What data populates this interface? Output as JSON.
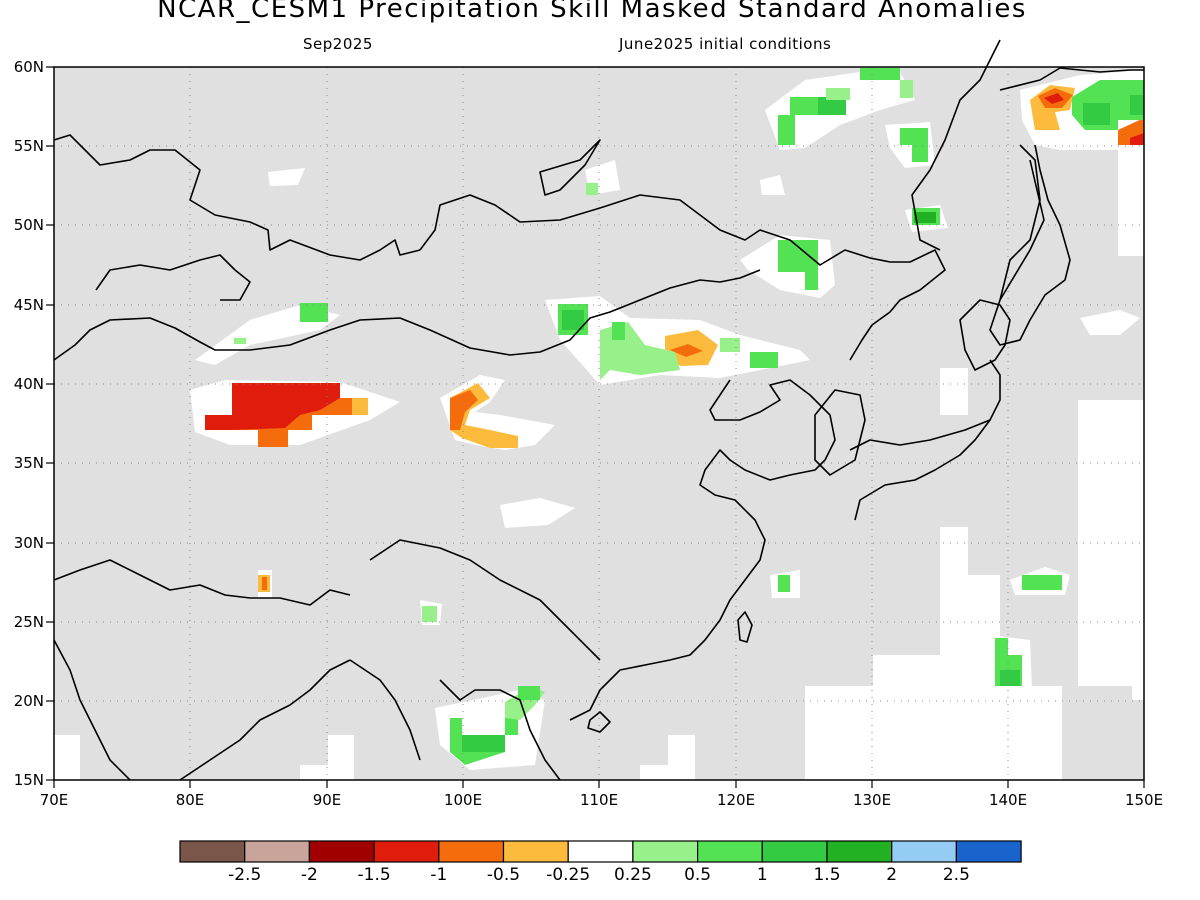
{
  "title": "NCAR_CESM1 Precipitation Skill Masked Standard Anomalies",
  "subtitle_left": "Sep2025",
  "subtitle_right": "June2025 initial conditions",
  "map": {
    "lon_range": [
      70,
      150
    ],
    "lat_range": [
      15,
      60
    ],
    "lat_ticks": [
      "60N",
      "55N",
      "50N",
      "45N",
      "40N",
      "35N",
      "30N",
      "25N",
      "20N",
      "15N"
    ],
    "lon_ticks": [
      "70E",
      "80E",
      "90E",
      "100E",
      "110E",
      "120E",
      "130E",
      "140E",
      "150E"
    ],
    "mask_color": "#e0e0e0",
    "grid": "dotted"
  },
  "colorbar": {
    "colors": [
      "#7a564a",
      "#c9a49a",
      "#a00000",
      "#e01c0c",
      "#f56c0c",
      "#fcbb3c",
      "#ffffff",
      "#98f08a",
      "#52e254",
      "#34cb44",
      "#22b122",
      "#94ccf4",
      "#1863cc"
    ],
    "labels": [
      "-2.5",
      "-2",
      "-1.5",
      "-1",
      "-0.5",
      "-0.25",
      "0.25",
      "0.5",
      "1",
      "1.5",
      "2",
      "2.5"
    ]
  }
}
